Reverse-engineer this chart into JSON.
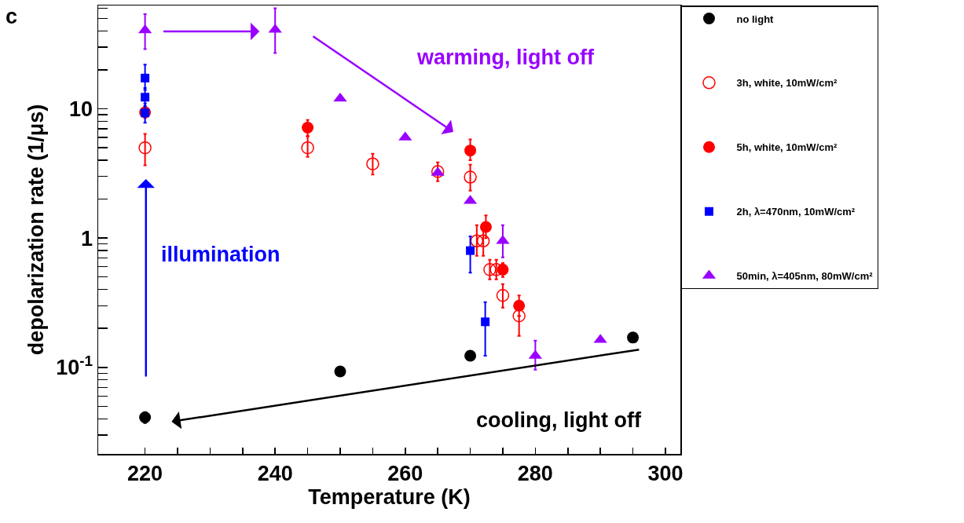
{
  "chart_data": {
    "type": "scatter",
    "xlabel": "Temperature (K)",
    "ylabel": "depolarization rate (1/μs)",
    "log": "y",
    "grid": false,
    "legend": "right",
    "xlim": [
      212.8,
      302.3
    ],
    "xticks": [
      220,
      {
        "value": 225,
        "label": null
      },
      {
        "value": 230,
        "label": null
      },
      {
        "value": 235,
        "label": null
      },
      240,
      {
        "value": 245,
        "label": null
      },
      {
        "value": 250,
        "label": null
      },
      {
        "value": 255,
        "label": null
      },
      260,
      {
        "value": 265,
        "label": null
      },
      {
        "value": 270,
        "label": null
      },
      {
        "value": 275,
        "label": null
      },
      280,
      {
        "value": 285,
        "label": null
      },
      {
        "value": 290,
        "label": null
      },
      {
        "value": 295,
        "label": null
      },
      300
    ],
    "ylim": [
      0.0214,
      63
    ],
    "yticks": [
      {
        "value": 0.03,
        "label": null
      },
      {
        "value": 0.04,
        "label": null
      },
      {
        "value": 0.05,
        "label": null
      },
      {
        "value": 0.06,
        "label": null
      },
      {
        "value": 0.07,
        "label": null
      },
      {
        "value": 0.08,
        "label": null
      },
      {
        "value": 0.09,
        "label": null
      },
      {
        "value": 0.1,
        "label": "10$^{-1}$"
      },
      {
        "value": 0.2,
        "label": null
      },
      {
        "value": 0.3,
        "label": null
      },
      {
        "value": 0.4,
        "label": null
      },
      {
        "value": 0.5,
        "label": null
      },
      {
        "value": 0.6,
        "label": null
      },
      {
        "value": 0.7,
        "label": null
      },
      {
        "value": 0.8,
        "label": null
      },
      {
        "value": 0.9,
        "label": null
      },
      1,
      {
        "value": 2,
        "label": null
      },
      {
        "value": 3,
        "label": null
      },
      {
        "value": 4,
        "label": null
      },
      {
        "value": 5,
        "label": null
      },
      {
        "value": 6,
        "label": null
      },
      {
        "value": 7,
        "label": null
      },
      {
        "value": 8,
        "label": null
      },
      {
        "value": 9,
        "label": null
      },
      10,
      {
        "value": 20,
        "label": null
      },
      {
        "value": 30,
        "label": null
      },
      {
        "value": 40,
        "label": null
      },
      {
        "value": 50,
        "label": null
      },
      {
        "value": 60,
        "label": null
      }
    ],
    "annotations": [
      "c",
      "warming, light off",
      "illumination",
      "cooling, light off"
    ],
    "series": [
      {
        "name": "no light",
        "color": "#000000",
        "marker": "circle",
        "x": [
          220,
          250,
          270,
          295
        ],
        "values": [
          0.041,
          0.093,
          0.123,
          0.17
        ],
        "errors": [
          [
            0.037,
            0.045
          ],
          null,
          null,
          null
        ]
      },
      {
        "name": "3h, white, 10mW/cm²",
        "color": "#ff0000",
        "marker": "circle-open",
        "x": [
          220,
          245,
          255,
          265,
          270,
          271,
          272,
          273,
          274,
          275,
          277.5
        ],
        "values": [
          5.0,
          5.0,
          3.75,
          3.27,
          2.96,
          0.95,
          0.95,
          0.57,
          0.57,
          0.36,
          0.25
        ],
        "errors": [
          [
            3.65,
            6.4
          ],
          [
            4.25,
            6.1
          ],
          [
            3.1,
            4.5
          ],
          [
            2.75,
            3.85
          ],
          [
            2.33,
            3.7
          ],
          [
            0.73,
            1.26
          ],
          [
            0.73,
            1.26
          ],
          [
            0.48,
            0.68
          ],
          [
            0.48,
            0.68
          ],
          [
            0.29,
            0.44
          ],
          [
            0.175,
            0.25
          ]
        ]
      },
      {
        "name": "5h, white, 10mW/cm²",
        "color": "#ff0000",
        "marker": "circle",
        "x": [
          220,
          245,
          270,
          272.4,
          275,
          277.5
        ],
        "values": [
          9.4,
          7.15,
          4.76,
          1.22,
          0.57,
          0.3
        ],
        "errors": [
          [
            8.5,
            10.3
          ],
          [
            6.2,
            8.2
          ],
          [
            4.0,
            5.8
          ],
          [
            1.0,
            1.5
          ],
          [
            0.5,
            0.64
          ],
          [
            0.25,
            0.36
          ]
        ]
      },
      {
        "name": "2h, λ=470nm, 10mW/cm²",
        "color": "#0000ff",
        "marker": "square",
        "x": [
          220,
          220,
          220,
          270,
          272.3
        ],
        "values": [
          17.3,
          12.3,
          9.3,
          0.8,
          0.225
        ],
        "errors": [
          [
            14,
            22
          ],
          [
            10.5,
            14.5
          ],
          [
            7.8,
            11
          ],
          [
            0.54,
            1.03
          ],
          [
            0.123,
            0.32
          ]
        ]
      },
      {
        "name": "50min, λ=405nm, 80mW/cm²",
        "color": "#9900ff",
        "marker": "triangle",
        "x": [
          220,
          240,
          250,
          260,
          265,
          270,
          275,
          280,
          290
        ],
        "values": [
          40.5,
          41,
          12,
          6,
          3.2,
          1.94,
          0.95,
          0.123,
          0.163
        ],
        "errors": [
          [
            29,
            54
          ],
          [
            27,
            60
          ],
          null,
          null,
          null,
          null,
          [
            0.71,
            1.26
          ],
          [
            0.096,
            0.161
          ],
          null
        ]
      }
    ]
  }
}
